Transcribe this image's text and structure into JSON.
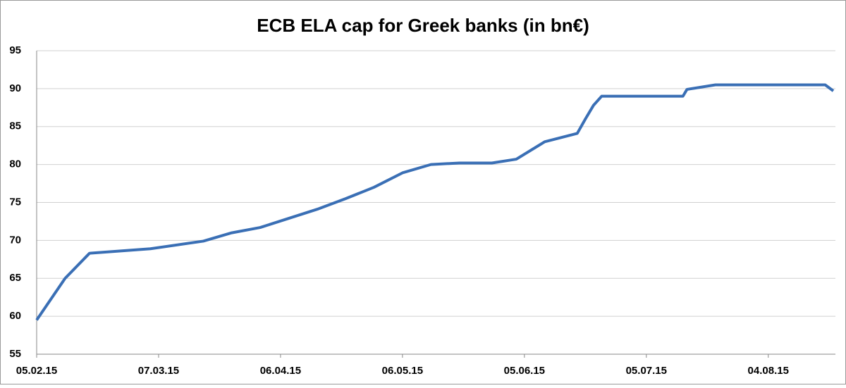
{
  "chart_data": {
    "type": "line",
    "title": "ECB ELA cap for Greek banks (in bn€)",
    "x": [
      "05.02.15",
      "12.02.15",
      "18.02.15",
      "05.03.15",
      "18.03.15",
      "25.03.15",
      "01.04.15",
      "15.04.15",
      "22.04.15",
      "29.04.15",
      "06.05.15",
      "13.05.15",
      "20.05.15",
      "28.05.15",
      "03.06.15",
      "10.06.15",
      "18.06.15",
      "20.06.15",
      "22.06.15",
      "24.06.15",
      "14.07.15",
      "15.07.15",
      "22.07.15",
      "18.08.15",
      "20.08.15"
    ],
    "series": [
      {
        "color": "#3a6fb5",
        "values": [
          59.5,
          65.0,
          68.3,
          68.9,
          69.9,
          71.0,
          71.7,
          74.1,
          75.5,
          77.0,
          78.9,
          80.0,
          80.2,
          80.2,
          80.7,
          83.0,
          84.1,
          86.0,
          87.8,
          89.0,
          89.0,
          89.9,
          90.5,
          90.5,
          89.7
        ]
      }
    ],
    "xlim": [
      "05.02.15",
      "20.08.15"
    ],
    "xticks": [
      "05.02.15",
      "07.03.15",
      "06.04.15",
      "06.05.15",
      "05.06.15",
      "05.07.15",
      "04.08.15"
    ],
    "ylim": [
      55,
      95
    ],
    "yticks": [
      55,
      60,
      65,
      70,
      75,
      80,
      85,
      90,
      95
    ],
    "grid": true
  }
}
